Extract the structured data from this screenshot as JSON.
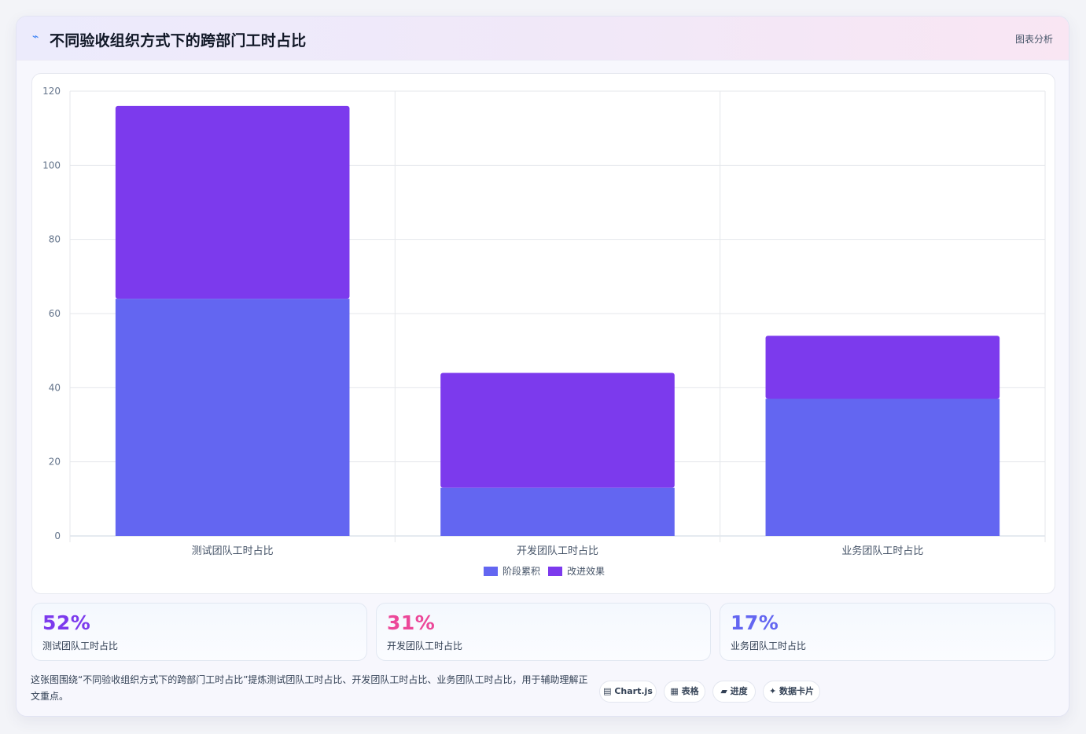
{
  "header": {
    "icon": "trend-icon",
    "title": "不同验收组织方式下的跨部门工时占比",
    "action_label": "图表分析"
  },
  "chart_data": {
    "type": "bar",
    "stacked": true,
    "categories": [
      "测试团队工时占比",
      "开发团队工时占比",
      "业务团队工时占比"
    ],
    "series": [
      {
        "name": "阶段累积",
        "color": "#6366f1",
        "values": [
          64,
          13,
          37
        ]
      },
      {
        "name": "改进效果",
        "color": "#7c3aed",
        "values": [
          52,
          31,
          17
        ]
      }
    ],
    "ylim": [
      0,
      120
    ],
    "yticks": [
      0,
      20,
      40,
      60,
      80,
      100,
      120
    ],
    "grid": true,
    "legend_position": "bottom"
  },
  "stats": [
    {
      "value": "52%",
      "label": "测试团队工时占比",
      "color": "#7c3aed"
    },
    {
      "value": "31%",
      "label": "开发团队工时占比",
      "color": "#ec4899"
    },
    {
      "value": "17%",
      "label": "业务团队工时占比",
      "color": "#6366f1"
    }
  ],
  "description": "这张图围绕“不同验收组织方式下的跨部门工时占比”提炼测试团队工时占比、开发团队工时占比、业务团队工时占比，用于辅助理解正文重点。",
  "tags": [
    {
      "icon": "▤",
      "label": "Chart.js"
    },
    {
      "icon": "▦",
      "label": "表格"
    },
    {
      "icon": "▰",
      "label": "进度"
    },
    {
      "icon": "✦",
      "label": "数据卡片"
    }
  ]
}
